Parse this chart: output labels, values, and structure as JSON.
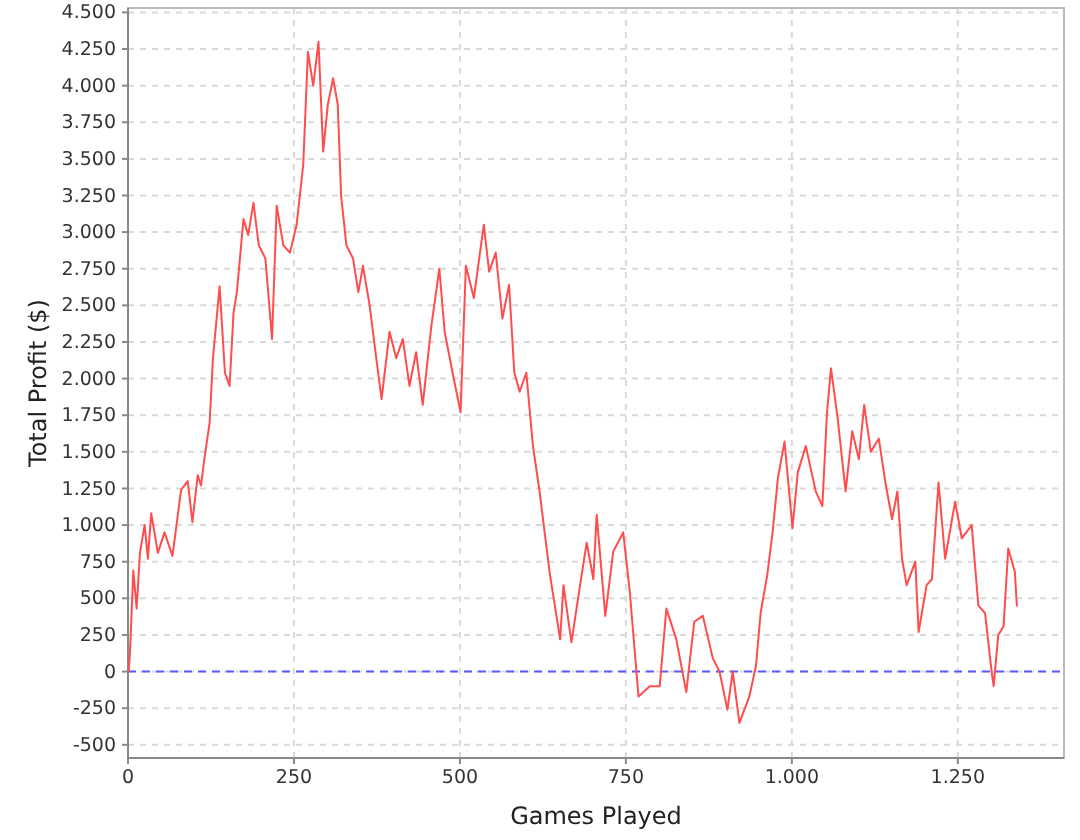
{
  "chart_data": {
    "type": "line",
    "xlabel": "Games Played",
    "ylabel": "Total Profit ($)",
    "xlim": [
      0,
      1410
    ],
    "ylim": [
      -590,
      4530
    ],
    "xticks": [
      0,
      250,
      500,
      750,
      {
        "value": 1000,
        "label": "1.000"
      },
      {
        "value": 1250,
        "label": "1.250"
      }
    ],
    "yticks": [
      -500,
      -250,
      0,
      250,
      500,
      750,
      {
        "value": 1000,
        "label": "1.000"
      },
      {
        "value": 1250,
        "label": "1.250"
      },
      {
        "value": 1500,
        "label": "1.500"
      },
      {
        "value": 1750,
        "label": "1.750"
      },
      {
        "value": 2000,
        "label": "2.000"
      },
      {
        "value": 2250,
        "label": "2.250"
      },
      {
        "value": 2500,
        "label": "2.500"
      },
      {
        "value": 2750,
        "label": "2.750"
      },
      {
        "value": 3000,
        "label": "3.000"
      },
      {
        "value": 3250,
        "label": "3.250"
      },
      {
        "value": 3500,
        "label": "3.500"
      },
      {
        "value": 3750,
        "label": "3.750"
      },
      {
        "value": 4000,
        "label": "4.000"
      },
      {
        "value": 4250,
        "label": "4.250"
      },
      {
        "value": 4500,
        "label": "4.500"
      }
    ],
    "grid": true,
    "line_style": "solid",
    "marker": "none",
    "ref_lines": [
      {
        "axis": "y",
        "value": 0,
        "color": "#5a5aff",
        "line_style": "dashed"
      }
    ],
    "series": [
      {
        "color": "#ff4d4d",
        "x": [
          1,
          3,
          8,
          13,
          18,
          25,
          30,
          35,
          45,
          55,
          67,
          80,
          90,
          97,
          105,
          110,
          115,
          123,
          128,
          138,
          146,
          153,
          159,
          164,
          174,
          181,
          189,
          197,
          207,
          217,
          224,
          234,
          244,
          254,
          264,
          271,
          279,
          287,
          294,
          301,
          309,
          316,
          321,
          329,
          339,
          347,
          354,
          364,
          374,
          382,
          394,
          404,
          414,
          424,
          434,
          444,
          457,
          469,
          477,
          489,
          501,
          509,
          521,
          529,
          536,
          544,
          554,
          564,
          574,
          582,
          590,
          600,
          610,
          620,
          635,
          651,
          656,
          668,
          681,
          691,
          701,
          706,
          719,
          731,
          746,
          756,
          769,
          786,
          801,
          811,
          826,
          841,
          853,
          866,
          881,
          891,
          903,
          911,
          921,
          936,
          946,
          953,
          963,
          971,
          979,
          989,
          1001,
          1009,
          1021,
          1036,
          1046,
          1053,
          1059,
          1069,
          1081,
          1091,
          1101,
          1109,
          1119,
          1131,
          1141,
          1151,
          1159,
          1166,
          1173,
          1186,
          1191,
          1203,
          1211,
          1221,
          1231,
          1246,
          1256,
          1271,
          1281,
          1291,
          1301,
          1304,
          1311,
          1319,
          1326,
          1336,
          1339
        ],
        "values": [
          0,
          130,
          690,
          430,
          810,
          1000,
          770,
          1080,
          810,
          950,
          790,
          1240,
          1300,
          1020,
          1340,
          1270,
          1450,
          1700,
          2140,
          2630,
          2040,
          1950,
          2450,
          2590,
          3090,
          2980,
          3200,
          2910,
          2820,
          2270,
          3180,
          2910,
          2860,
          3050,
          3460,
          4230,
          4000,
          4300,
          3550,
          3870,
          4050,
          3870,
          3250,
          2910,
          2820,
          2590,
          2770,
          2500,
          2140,
          1860,
          2320,
          2140,
          2270,
          1950,
          2180,
          1820,
          2360,
          2750,
          2320,
          2040,
          1770,
          2770,
          2550,
          2820,
          3050,
          2730,
          2860,
          2410,
          2640,
          2040,
          1910,
          2040,
          1540,
          1230,
          680,
          220,
          590,
          200,
          590,
          880,
          630,
          1070,
          380,
          820,
          950,
          540,
          -170,
          -100,
          -100,
          430,
          220,
          -140,
          340,
          380,
          90,
          0,
          -260,
          0,
          -350,
          -170,
          40,
          400,
          660,
          950,
          1320,
          1570,
          980,
          1360,
          1540,
          1230,
          1130,
          1770,
          2070,
          1730,
          1230,
          1640,
          1450,
          1820,
          1500,
          1590,
          1290,
          1040,
          1230,
          770,
          590,
          750,
          270,
          590,
          630,
          1290,
          770,
          1160,
          910,
          1000,
          450,
          400,
          0,
          -100,
          250,
          310,
          840,
          680,
          450
        ]
      }
    ]
  }
}
